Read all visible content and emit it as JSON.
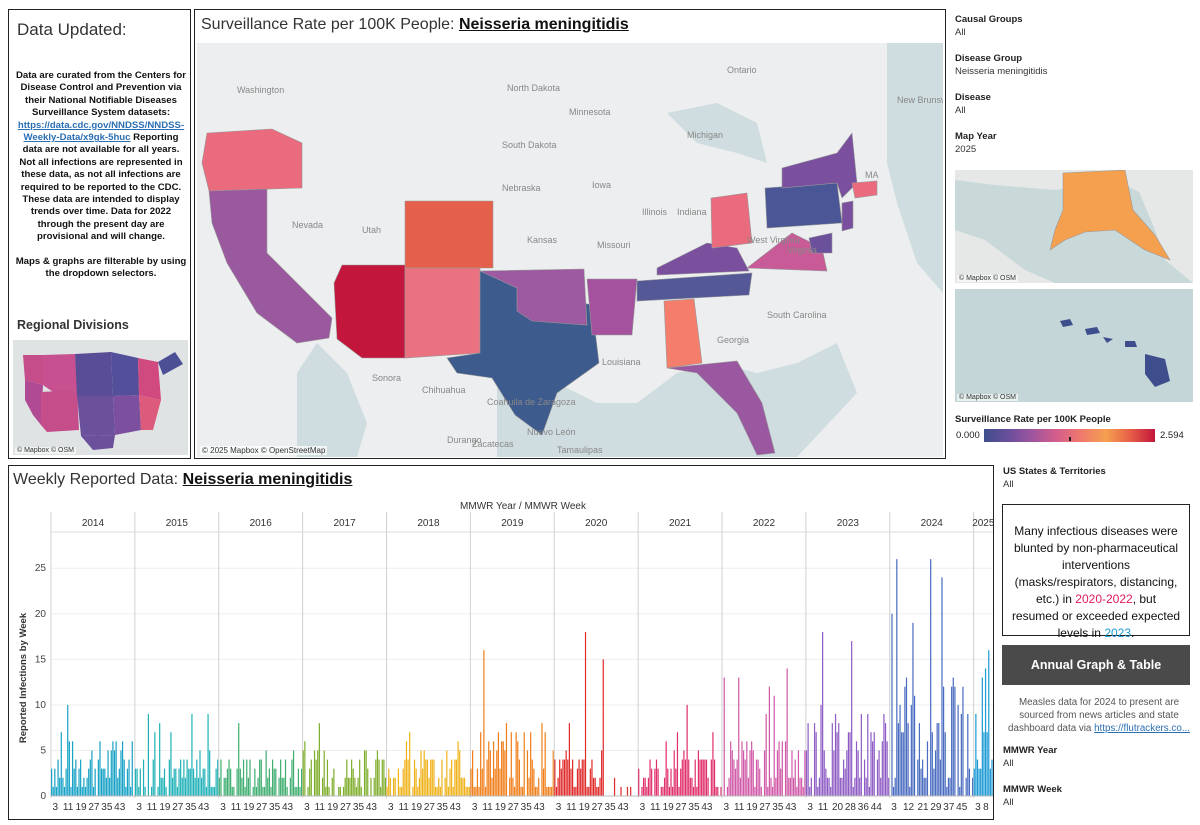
{
  "left": {
    "title": "Data Updated:",
    "desc_part1": "Data are curated from the Centers for Disease Control and Prevention via their National Notifiable Diseases Surveillance System datasets:",
    "desc_link": "https://data.cdc.gov/NNDSS/NNDSS-Weekly-Data/x9gk-5huc",
    "desc_part2": "Reporting data are not available for all years. Not all infections are represented in these data, as not all infections are required to be reported to the CDC. These data are intended to display trends over time.  Data for 2022 through the present day are provisional and will change.",
    "desc_part3": "Maps & graphs are filterable by using the dropdown selectors.",
    "regional_title": "Regional Divisions",
    "mini_map_credit": "© Mapbox © OSM"
  },
  "map": {
    "title_prefix": "Surveillance Rate per 100K People: ",
    "disease": "Neisseria meningitidis",
    "copyright": "© 2025 Mapbox © OpenStreetMap",
    "labels": [
      "Washington",
      "North Dakota",
      "Minnesota",
      "South Dakota",
      "Michigan",
      "Nebraska",
      "Iowa",
      "Nevada",
      "Utah",
      "Illinois",
      "Indiana",
      "Kansas",
      "Missouri",
      "Sonora",
      "Chihuahua",
      "Nuevo León",
      "Durango",
      "Zacatecas",
      "Louisiana",
      "South Carolina",
      "Georgia",
      "Virginia",
      "West Virginia",
      "Coahuila de Zaragoza",
      "Tamaulipas",
      "Ontario",
      "New Brunswick",
      "MA"
    ]
  },
  "filters": {
    "causal_groups": {
      "label": "Causal Groups",
      "value": "All"
    },
    "disease_group": {
      "label": "Disease Group",
      "value": "Neisseria meningitidis"
    },
    "disease": {
      "label": "Disease",
      "value": "All"
    },
    "map_year": {
      "label": "Map Year",
      "value": "2025"
    },
    "us_states": {
      "label": "US States & Territories",
      "value": "All"
    },
    "mmwr_year": {
      "label": "MMWR Year",
      "value": "All"
    },
    "mmwr_week": {
      "label": "MMWR Week",
      "value": "All"
    }
  },
  "inset": {
    "alaska_credit": "© Mapbox © OSM",
    "hawaii_credit": "© Mapbox © OSM"
  },
  "legend": {
    "title": "Surveillance Rate per 100K People",
    "min": "0.000",
    "max": "2.594"
  },
  "weekly": {
    "title_prefix": "Weekly Reported Data: ",
    "disease": "Neisseria meningitidis"
  },
  "note": {
    "part1": "Many infectious diseases were blunted by non-pharmaceutical interventions (masks/respirators, distancing, etc.) in ",
    "years_pink": "2020-2022",
    "part2": ", but resumed or exceeded expected levels in ",
    "year_blue": "2023",
    "part3": "."
  },
  "annual_button": "Annual Graph & Table",
  "measles": {
    "text": "Measles data for 2024 to present are sourced from news articles and state dashboard data via ",
    "link": "https://flutrackers.co..."
  },
  "colors": {
    "rate_low": "#3e4e8d",
    "rate_high": "#c2163c",
    "note_pink": "#e0195f",
    "note_blue": "#1b9ad6",
    "button_bg": "#4a4a4a"
  },
  "chart_data": {
    "type": "bar",
    "title": "Weekly Reported Data: Neisseria meningitidis",
    "column_header": "MMWR Year  /  MMWR Week",
    "ylabel": "Reported Infections by Week",
    "ylim": [
      0,
      27
    ],
    "yticks": [
      0,
      5,
      10,
      15,
      20,
      25
    ],
    "week_ticks": [
      "3",
      "11",
      "19",
      "27",
      "35",
      "43"
    ],
    "years": [
      {
        "year": "2014",
        "color": "#17a2c6",
        "weeks": 52,
        "base": 4,
        "peak": 10,
        "peak_week": 10
      },
      {
        "year": "2015",
        "color": "#20b2b8",
        "weeks": 52,
        "base": 3,
        "peak": 9,
        "peak_week": 8
      },
      {
        "year": "2016",
        "color": "#3fae70",
        "weeks": 52,
        "base": 3,
        "peak": 8,
        "peak_week": 12
      },
      {
        "year": "2017",
        "color": "#7fae2d",
        "weeks": 52,
        "base": 3,
        "peak": 8,
        "peak_week": 10
      },
      {
        "year": "2018",
        "color": "#efb21a",
        "weeks": 52,
        "base": 3,
        "peak": 7,
        "peak_week": 14
      },
      {
        "year": "2019",
        "color": "#f07f1a",
        "weeks": 52,
        "base": 5,
        "peak": 16,
        "peak_week": 8
      },
      {
        "year": "2020",
        "color": "#e02b2b",
        "weeks": 52,
        "base": 3,
        "peak": 18,
        "peak_week": 19
      },
      {
        "year": "2021",
        "color": "#e0306b",
        "weeks": 52,
        "base": 3,
        "peak": 10,
        "peak_week": 30
      },
      {
        "year": "2022",
        "color": "#d05aa8",
        "weeks": 52,
        "base": 4,
        "peak": 14,
        "peak_week": 40
      },
      {
        "year": "2023",
        "color": "#8e5cc4",
        "weeks": 52,
        "base": 6,
        "peak": 18,
        "peak_week": 10
      },
      {
        "year": "2024",
        "color": "#4a6cc0",
        "weeks": 52,
        "base": 8,
        "peak": 26,
        "peak_week": 4
      },
      {
        "year": "2025",
        "color": "#1b9ad6",
        "weeks": 12,
        "base": 6,
        "peak": 16,
        "peak_week": 9
      }
    ],
    "last_year_week_ticks": [
      "3",
      "8"
    ],
    "y2024_week_ticks": [
      "3",
      "12",
      "21",
      "29",
      "37",
      "45"
    ],
    "y2023_week_ticks": [
      "3",
      "11",
      "20",
      "28",
      "36",
      "44"
    ],
    "y2019_week_ticks": [
      "3",
      "11",
      "19",
      "27",
      "35",
      "43"
    ]
  }
}
